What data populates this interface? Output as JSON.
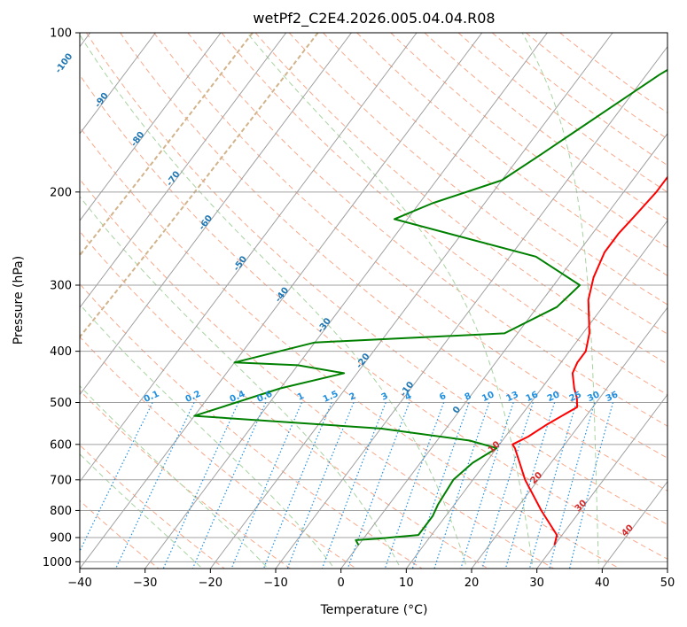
{
  "chart_data": {
    "type": "skew-t",
    "title": "wetPf2_C2E4.2026.005.04.04.R08",
    "xlabel": "Temperature (°C)",
    "ylabel": "Pressure (hPa)",
    "xlim": [
      -40,
      50
    ],
    "ylim": [
      1030,
      100
    ],
    "x_ticks": [
      -40,
      -30,
      -20,
      -10,
      0,
      10,
      20,
      30,
      40,
      50
    ],
    "x_tick_labels": [
      "−40",
      "−30",
      "−20",
      "−10",
      "0",
      "10",
      "20",
      "30",
      "40",
      "50"
    ],
    "y_ticks": [
      100,
      200,
      300,
      400,
      500,
      600,
      700,
      800,
      900,
      1000
    ],
    "y_tick_labels": [
      "100",
      "200",
      "300",
      "400",
      "500",
      "600",
      "700",
      "800",
      "900",
      "1000"
    ],
    "grid": true,
    "colors": {
      "temperature": "#ff0000",
      "dewpoint": "#008000",
      "isotherm": "#a0a0a0",
      "dry_adiabat": "#f9a88b",
      "moist_adiabat": "#a7d3a0",
      "mixing_ratio": "#1f8fe0",
      "ghost_label": "#1f77b4",
      "moist_label": "#d62728",
      "lcl_dashed": "#d2b48c"
    },
    "series": [
      {
        "name": "Temperature",
        "points": [
          [
            30,
            930
          ],
          [
            29.2,
            890
          ],
          [
            24,
            800
          ],
          [
            18,
            700
          ],
          [
            12.8,
            610
          ],
          [
            12,
            600
          ],
          [
            13.5,
            580
          ],
          [
            15,
            550
          ],
          [
            17.6,
            510
          ],
          [
            16.5,
            490
          ],
          [
            15,
            470
          ],
          [
            13,
            440
          ],
          [
            12.5,
            420
          ],
          [
            12.5,
            400
          ],
          [
            11,
            370
          ],
          [
            7,
            320
          ],
          [
            5.2,
            290
          ],
          [
            4,
            260
          ],
          [
            4,
            240
          ],
          [
            4.5,
            220
          ],
          [
            5,
            200
          ],
          [
            5,
            170
          ],
          [
            3.5,
            140
          ],
          [
            2,
            120
          ],
          [
            1.5,
            100
          ]
        ]
      },
      {
        "name": "Dewpoint",
        "points": [
          [
            0,
            930
          ],
          [
            -1,
            910
          ],
          [
            2,
            905
          ],
          [
            8,
            890
          ],
          [
            8,
            820
          ],
          [
            7.5,
            780
          ],
          [
            7,
            700
          ],
          [
            8,
            650
          ],
          [
            10,
            610
          ],
          [
            5,
            590
          ],
          [
            -10,
            560
          ],
          [
            -40,
            530
          ],
          [
            -30,
            470
          ],
          [
            -22,
            440
          ],
          [
            -30,
            425
          ],
          [
            -40,
            420
          ],
          [
            -30,
            385
          ],
          [
            -2,
            370
          ],
          [
            3,
            330
          ],
          [
            4,
            300
          ],
          [
            -6,
            265
          ],
          [
            -32,
            225
          ],
          [
            -28,
            210
          ],
          [
            -20,
            190
          ],
          [
            -17,
            170
          ],
          [
            -12,
            140
          ],
          [
            -8,
            120
          ],
          [
            -2,
            100
          ]
        ]
      }
    ],
    "isotherm_ghost_labels": [
      "-100",
      "-90",
      "-80",
      "-70",
      "-60",
      "-50",
      "-40",
      "-30",
      "-20",
      "-10",
      "0"
    ],
    "moist_adiabat_labels": [
      "10",
      "20",
      "30",
      "40"
    ],
    "mixing_ratio_labels": [
      "0.1",
      "0.2",
      "0.4",
      "0.6",
      "1",
      "1.5",
      "2",
      "3",
      "4",
      "6",
      "8",
      "10",
      "13",
      "16",
      "20",
      "25",
      "30",
      "36"
    ]
  }
}
